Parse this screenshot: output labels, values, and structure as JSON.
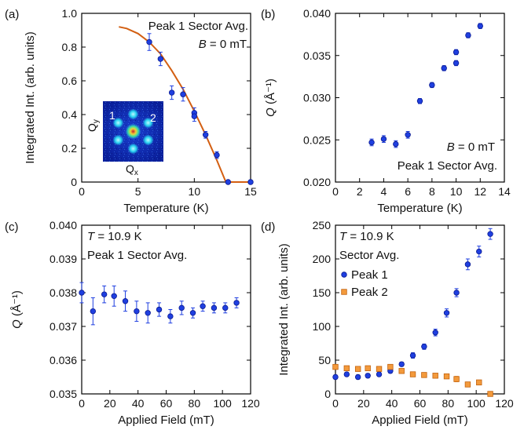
{
  "figure": {
    "panel_labels": [
      "(a)",
      "(b)",
      "(c)",
      "(d)"
    ],
    "inset": {
      "label_y": "Q",
      "label_y_sub": "y",
      "label_x": "Q",
      "label_x_sub": "x",
      "peak1": "1",
      "peak2": "2"
    }
  },
  "chart_data": [
    {
      "panel": "(a)",
      "type": "scatter",
      "xlabel": "Temperature (K)",
      "ylabel": "Integrated Int. (arb. units)",
      "xlim": [
        0,
        15
      ],
      "ylim": [
        0,
        1.0
      ],
      "xticks": [
        "0",
        "5",
        "10",
        "15"
      ],
      "yticks": [
        "0",
        "0.2",
        "0.4",
        "0.6",
        "0.8",
        "1.0"
      ],
      "annotations": [
        "Peak 1 Sector Avg.",
        "B = 0 mT"
      ],
      "series": [
        {
          "marker": "circle",
          "color": "#1f3fe0",
          "x": [
            6,
            7,
            8,
            9,
            10,
            10,
            11,
            12,
            13,
            15
          ],
          "y": [
            0.83,
            0.73,
            0.53,
            0.52,
            0.41,
            0.39,
            0.28,
            0.16,
            0.0,
            0.0
          ],
          "err": [
            0.05,
            0.04,
            0.04,
            0.04,
            0.03,
            0.03,
            0.02,
            0.02,
            0.0,
            0.0
          ]
        }
      ],
      "fit": {
        "color": "#d35f12",
        "x": [
          3.3,
          4,
          5,
          6,
          7,
          8,
          9,
          10,
          11,
          12,
          12.8,
          15
        ],
        "y": [
          0.92,
          0.91,
          0.88,
          0.83,
          0.76,
          0.66,
          0.55,
          0.42,
          0.28,
          0.13,
          0.0,
          0.0
        ]
      }
    },
    {
      "panel": "(b)",
      "type": "scatter",
      "xlabel": "Temperature (K)",
      "ylabel": "Q (Å⁻¹)",
      "xlim": [
        0,
        14
      ],
      "ylim": [
        0.02,
        0.04
      ],
      "xticks": [
        "0",
        "2",
        "4",
        "6",
        "8",
        "10",
        "12",
        "14"
      ],
      "yticks": [
        "0.020",
        "0.025",
        "0.030",
        "0.035",
        "0.040"
      ],
      "annotations": [
        "B = 0 mT",
        "Peak 1 Sector Avg."
      ],
      "series": [
        {
          "marker": "circle",
          "color": "#1f3fe0",
          "x": [
            3,
            4,
            5,
            6,
            7,
            8,
            9,
            10,
            10,
            11,
            12
          ],
          "y": [
            0.0247,
            0.0251,
            0.0245,
            0.0256,
            0.0296,
            0.0315,
            0.0335,
            0.0341,
            0.0354,
            0.0374,
            0.0385
          ],
          "err": [
            0.0004,
            0.0004,
            0.0004,
            0.0004,
            0.0003,
            0.0003,
            0.0003,
            0.0003,
            0.0003,
            0.0003,
            0.0003
          ]
        }
      ]
    },
    {
      "panel": "(c)",
      "type": "scatter",
      "xlabel": "Applied Field (mT)",
      "ylabel": "Q (Å⁻¹)",
      "xlim": [
        0,
        120
      ],
      "ylim": [
        0.035,
        0.04
      ],
      "xticks": [
        "0",
        "20",
        "40",
        "60",
        "80",
        "100",
        "120"
      ],
      "yticks": [
        "0.035",
        "0.036",
        "0.037",
        "0.038",
        "0.039",
        "0.040"
      ],
      "annotations": [
        "T = 10.9 K",
        "Peak 1 Sector Avg."
      ],
      "series": [
        {
          "marker": "circle",
          "color": "#1f3fe0",
          "x": [
            0,
            8,
            16,
            23,
            31,
            39,
            47,
            55,
            63,
            71,
            79,
            86,
            94,
            102,
            110
          ],
          "y": [
            0.038,
            0.03745,
            0.03795,
            0.0379,
            0.03775,
            0.03745,
            0.0374,
            0.0375,
            0.0373,
            0.03755,
            0.0374,
            0.0376,
            0.03755,
            0.03755,
            0.0377
          ],
          "err": [
            0.0003,
            0.0004,
            0.00025,
            0.0003,
            0.0003,
            0.0003,
            0.0003,
            0.0002,
            0.0002,
            0.0002,
            0.00015,
            0.00015,
            0.00015,
            0.00015,
            0.00015
          ]
        }
      ]
    },
    {
      "panel": "(d)",
      "type": "scatter",
      "xlabel": "Applied Field (mT)",
      "ylabel": "Integrated Int. (arb. units)",
      "xlim": [
        0,
        120
      ],
      "ylim": [
        0,
        250
      ],
      "xticks": [
        "0",
        "20",
        "40",
        "60",
        "80",
        "100",
        "120"
      ],
      "yticks": [
        "0",
        "50",
        "100",
        "150",
        "200",
        "250"
      ],
      "annotations": [
        "T = 10.9 K",
        "Sector Avg."
      ],
      "legend": "top-left",
      "series": [
        {
          "name": "Peak 1",
          "marker": "circle",
          "color": "#1f3fe0",
          "x": [
            0,
            8,
            16,
            23,
            31,
            39,
            47,
            55,
            63,
            71,
            79,
            86,
            94,
            102,
            110
          ],
          "y": [
            25,
            29,
            25,
            27,
            29,
            34,
            44,
            57,
            70,
            91,
            120,
            150,
            192,
            211,
            237
          ],
          "err": [
            3,
            3,
            3,
            3,
            3,
            3,
            3,
            4,
            4,
            5,
            6,
            6,
            8,
            8,
            8
          ]
        },
        {
          "name": "Peak 2",
          "marker": "square",
          "color": "#f39a3c",
          "x": [
            0,
            8,
            16,
            23,
            31,
            39,
            47,
            55,
            63,
            71,
            79,
            86,
            94,
            102,
            110
          ],
          "y": [
            40,
            38,
            37,
            38,
            37,
            40,
            34,
            29,
            28,
            27,
            26,
            22,
            14,
            17,
            0
          ],
          "err": [
            3,
            3,
            3,
            3,
            3,
            3,
            3,
            3,
            3,
            3,
            3,
            4,
            3,
            3,
            0
          ]
        }
      ]
    }
  ]
}
